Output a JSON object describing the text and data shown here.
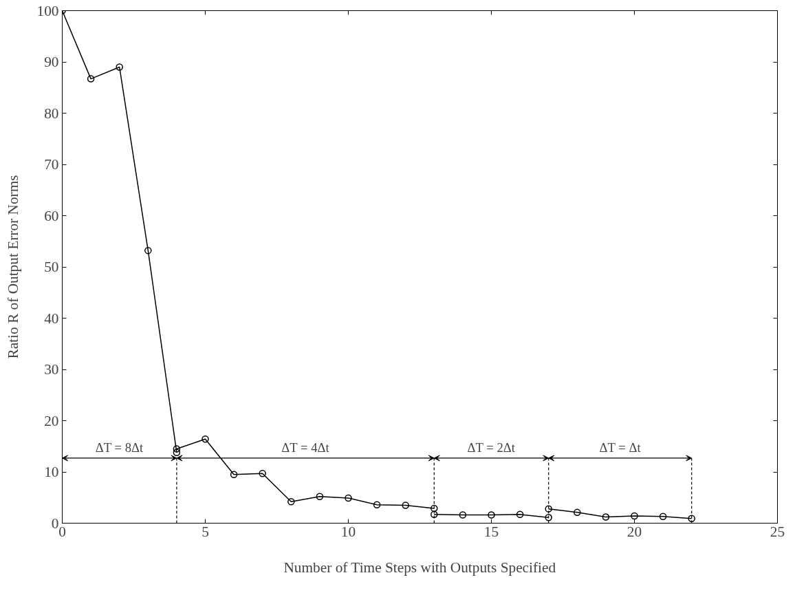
{
  "chart_data": {
    "type": "line",
    "xlabel": "Number of Time Steps with Outputs Specified",
    "ylabel": "Ratio R of Output Error Norms",
    "series": [
      {
        "color": "#000000",
        "x": [
          0,
          1,
          2,
          3,
          4
        ],
        "values": [
          100,
          86.7,
          89,
          53.2,
          13.8
        ]
      },
      {
        "color": "#000000",
        "x": [
          4,
          5,
          6,
          7,
          8,
          9,
          10,
          11,
          12,
          13
        ],
        "values": [
          14.5,
          16.4,
          9.5,
          9.7,
          4.2,
          5.2,
          4.9,
          3.6,
          3.5,
          2.9
        ]
      },
      {
        "color": "#000000",
        "x": [
          13,
          14,
          15,
          16,
          17
        ],
        "values": [
          1.7,
          1.6,
          1.6,
          1.7,
          1.1
        ]
      },
      {
        "color": "#000000",
        "x": [
          17,
          18,
          19,
          20,
          21,
          22
        ],
        "values": [
          2.8,
          2.1,
          1.2,
          1.4,
          1.3,
          0.9
        ]
      }
    ],
    "annotations": [
      "ΔT = 8Δt",
      "ΔT = 4Δt",
      "ΔT = 2Δt",
      "ΔT = Δt"
    ],
    "ref_lines": [
      {
        "axis": "x",
        "value": 4,
        "line_style": "dashed"
      },
      {
        "axis": "x",
        "value": 13,
        "line_style": "dashed"
      },
      {
        "axis": "x",
        "value": 17,
        "line_style": "dashed"
      },
      {
        "axis": "x",
        "value": 22,
        "line_style": "dashed"
      }
    ],
    "xlim": [
      0,
      25
    ],
    "xticks": [
      0,
      5,
      10,
      15,
      20,
      25
    ],
    "ylim": [
      0,
      100
    ],
    "yticks": [
      0,
      10,
      20,
      30,
      40,
      50,
      60,
      70,
      80,
      90,
      100
    ],
    "marker": "circle",
    "line_style": "solid",
    "grid": false
  }
}
